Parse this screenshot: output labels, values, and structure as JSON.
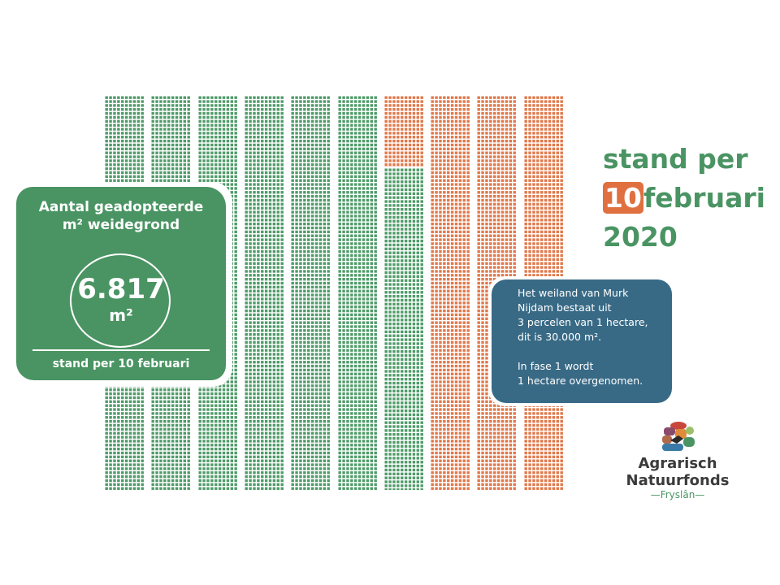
{
  "grid": {
    "columns": 10,
    "dots_per_column": 1000,
    "adopted_m2": 6817,
    "total_m2": 10000,
    "colors": {
      "adopted": "#4e9a68",
      "remaining": "#e0784a"
    }
  },
  "counter_box": {
    "title_line1": "Aantal geadopteerde",
    "title_line2": "m² weidegrond",
    "value": "6.817",
    "unit": "m²",
    "footer": "stand per 10 februari",
    "color": "#4a9463"
  },
  "date_heading": {
    "line1": "stand per",
    "day": "10",
    "month": "februari",
    "year": "2020",
    "color": "#4a9463",
    "accent": "#e07040"
  },
  "info_box": {
    "p1": [
      "Het weiland van Murk",
      "Nijdam bestaat uit",
      "3 percelen van 1 hectare,",
      "dit is 30.000 m²."
    ],
    "p2": [
      "In fase 1 wordt",
      "1 hectare overgenomen."
    ],
    "color": "#386a86"
  },
  "logo": {
    "name": "Agrarisch Natuurfonds",
    "sub": "—Fryslân—"
  }
}
